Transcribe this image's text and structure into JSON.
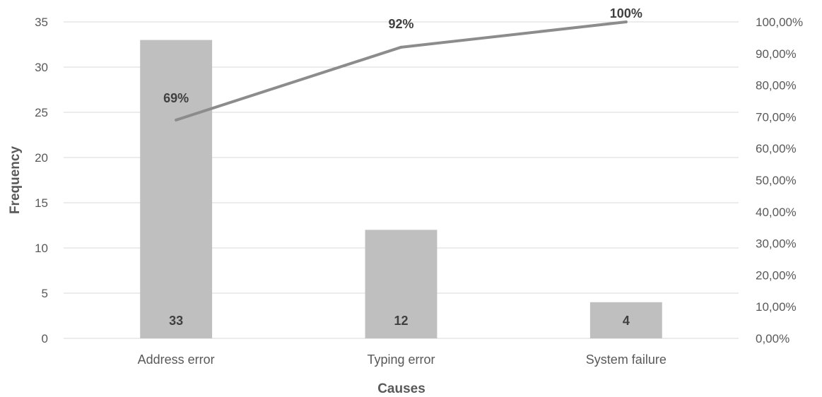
{
  "chart_data": {
    "type": "bar",
    "categories": [
      "Address error",
      "Typing error",
      "System failure"
    ],
    "series": [
      {
        "type": "bar",
        "axis": "left",
        "values": [
          33,
          12,
          4
        ],
        "data_labels": [
          "33",
          "12",
          "4"
        ],
        "color": "#bfbfbf"
      },
      {
        "type": "line",
        "axis": "right",
        "values": [
          0.69,
          0.92,
          1.0
        ],
        "data_labels": [
          "69%",
          "92%",
          "100%"
        ],
        "color": "#8c8c8c"
      }
    ],
    "xlabel": "Causes",
    "ylabel": "Frequency",
    "ylim": [
      0,
      35
    ],
    "yticks": [
      0,
      5,
      10,
      15,
      20,
      25,
      30,
      35
    ],
    "y2lim": [
      0,
      1
    ],
    "y2ticks": [
      0,
      0.1,
      0.2,
      0.3,
      0.4,
      0.5,
      0.6,
      0.7,
      0.8,
      0.9,
      1.0
    ],
    "y2tick_labels": [
      "0,00%",
      "10,00%",
      "20,00%",
      "30,00%",
      "40,00%",
      "50,00%",
      "60,00%",
      "70,00%",
      "80,00%",
      "90,00%",
      "100,00%"
    ],
    "grid": true,
    "legend": "none",
    "gridline_color": "#d9d9d9"
  }
}
